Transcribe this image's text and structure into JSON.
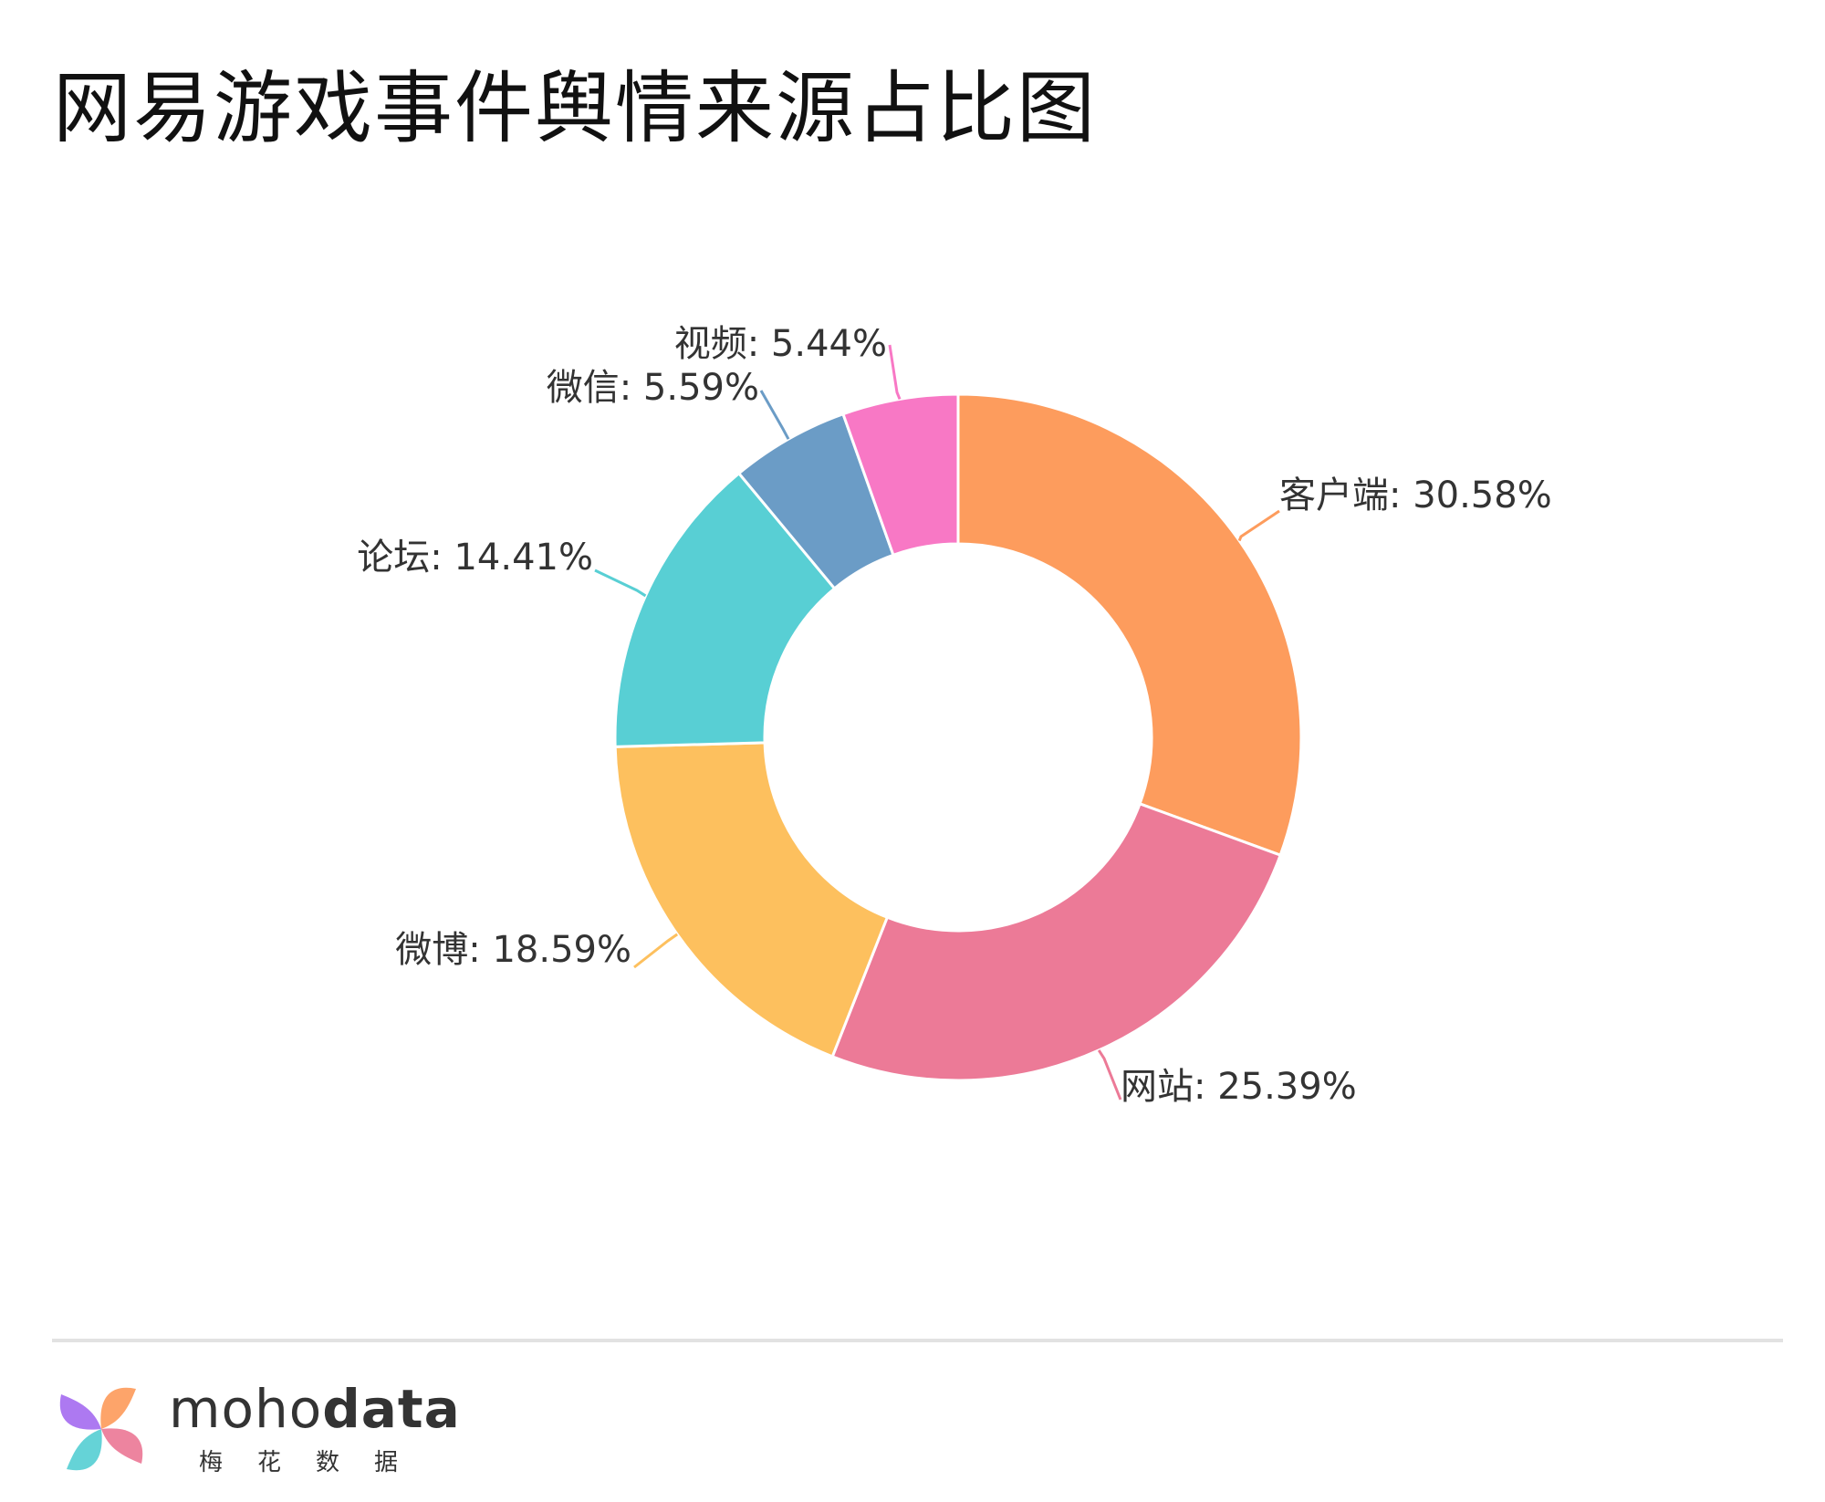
{
  "title": "网易游戏事件舆情来源占比图",
  "chart_data": {
    "type": "pie",
    "style": "donut",
    "title": "网易游戏事件舆情来源占比图",
    "unit": "%",
    "slices": [
      {
        "label": "客户端",
        "value": 30.58,
        "display": "30.58%",
        "color": "#fd9c5d"
      },
      {
        "label": "网站",
        "value": 25.39,
        "display": "25.39%",
        "color": "#ec7a97"
      },
      {
        "label": "微博",
        "value": 18.59,
        "display": "18.59%",
        "color": "#fdc05e"
      },
      {
        "label": "论坛",
        "value": 14.41,
        "display": "14.41%",
        "color": "#58cfd4"
      },
      {
        "label": "微信",
        "value": 5.59,
        "display": "5.59%",
        "color": "#6b9cc6"
      },
      {
        "label": "视频",
        "value": 5.44,
        "display": "5.44%",
        "color": "#f878c5"
      }
    ]
  },
  "brand": {
    "name_light": "moho",
    "name_bold": "data",
    "subtitle": "梅花数据",
    "logo_colors": [
      "#fd9c5d",
      "#ec7a97",
      "#58cfd4",
      "#a66ef0"
    ]
  }
}
